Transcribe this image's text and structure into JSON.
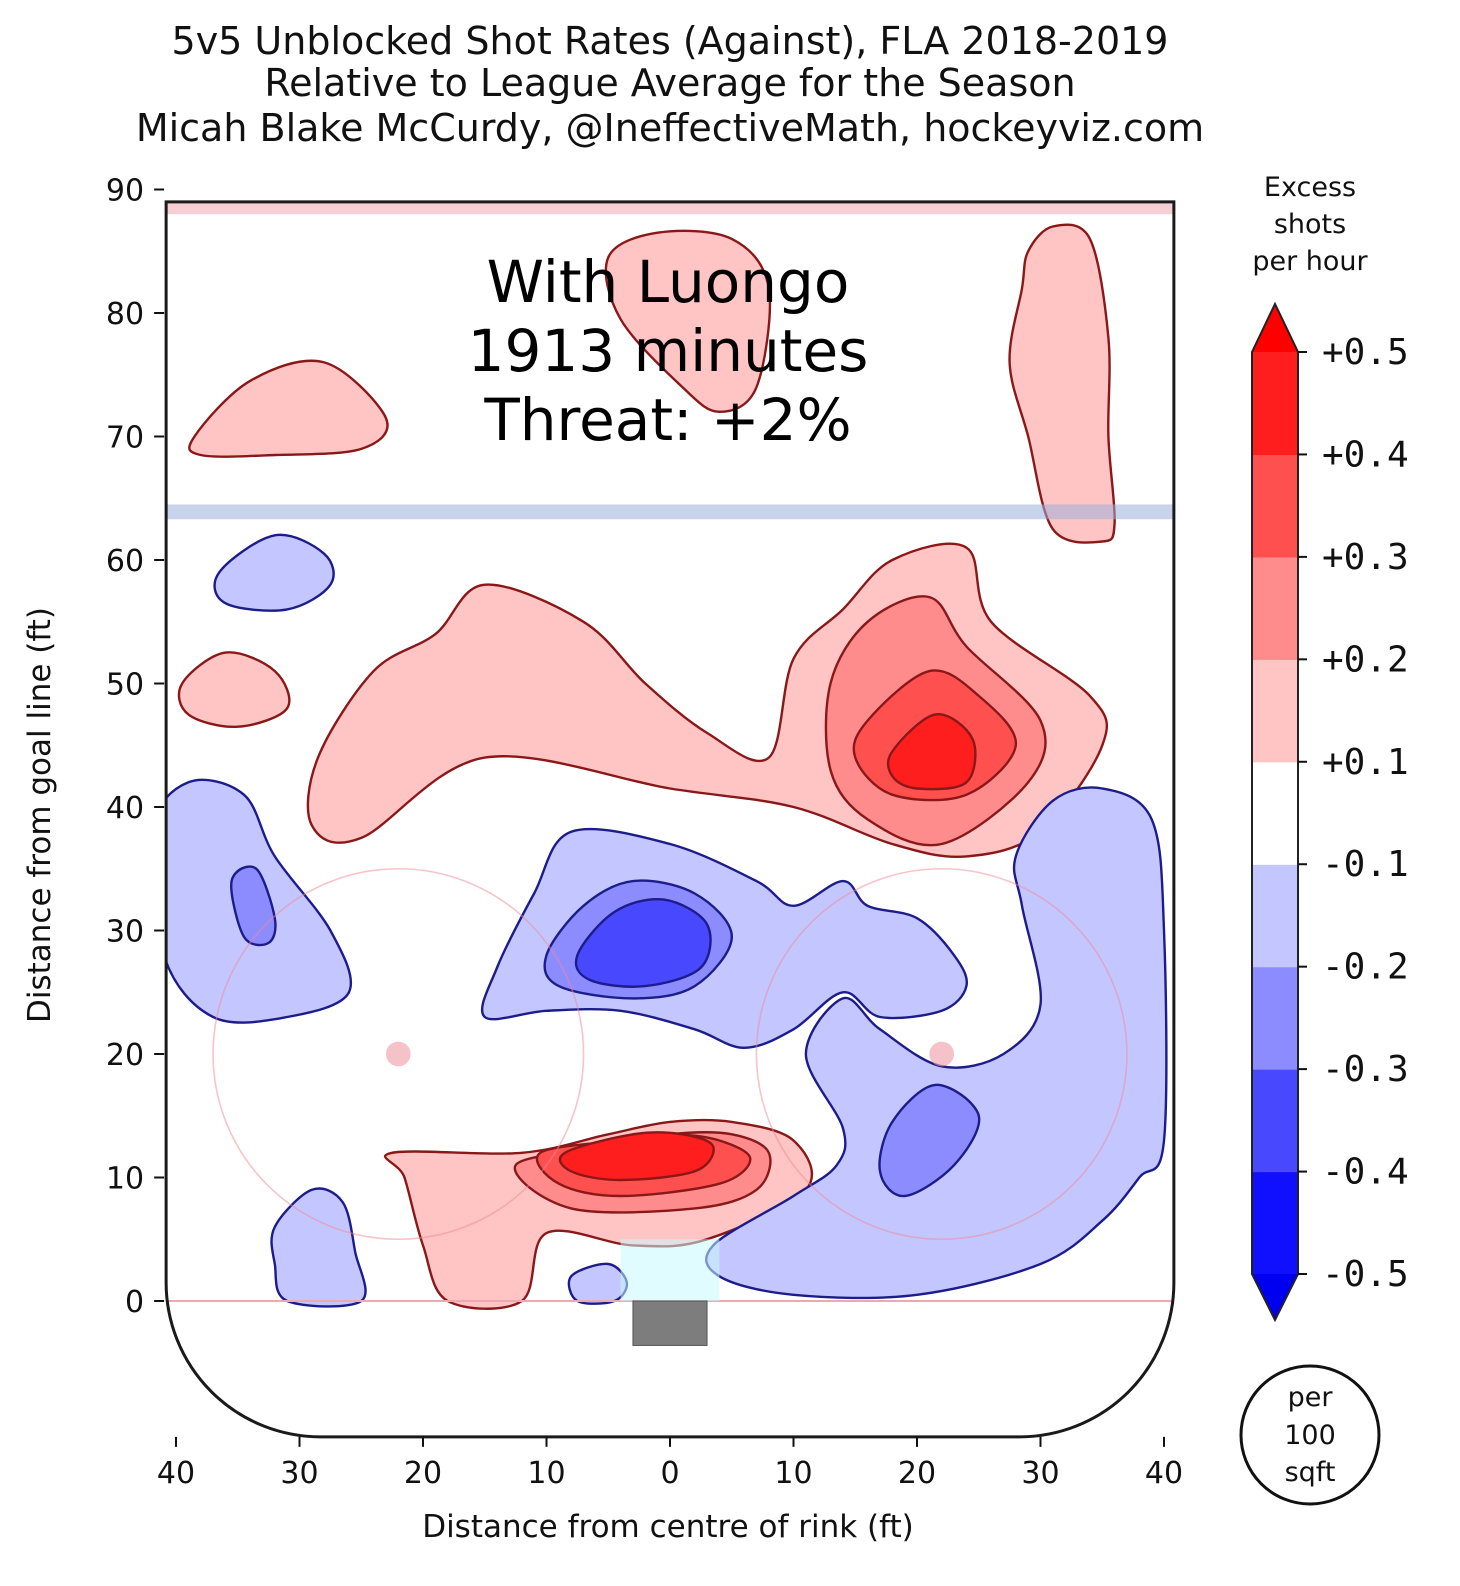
{
  "chart_data": {
    "type": "heatmap",
    "title": [
      "5v5 Unblocked Shot Rates (Against), FLA 2018-2019",
      "Relative to League Average for the Season",
      "Micah Blake McCurdy, @IneffectiveMath, hockeyviz.com"
    ],
    "xlabel": "Distance from centre of rink (ft)",
    "ylabel": "Distance from goal line (ft)",
    "xlim": [
      -42,
      42
    ],
    "ylim": [
      -11,
      90
    ],
    "x_ticks": [
      -40,
      -30,
      -20,
      -10,
      0,
      10,
      20,
      30,
      40
    ],
    "x_tick_labels": [
      "40",
      "30",
      "20",
      "10",
      "0",
      "10",
      "20",
      "30",
      "40"
    ],
    "y_ticks": [
      0,
      10,
      20,
      30,
      40,
      50,
      60,
      70,
      80,
      90
    ],
    "y_tick_labels": [
      "0",
      "10",
      "20",
      "30",
      "40",
      "50",
      "60",
      "70",
      "80",
      "90"
    ],
    "annotation": [
      "With Luongo",
      "1913 minutes",
      "Threat: +2%"
    ],
    "colorbar": {
      "title": [
        "Excess",
        "shots",
        "per hour"
      ],
      "levels": [
        -0.5,
        -0.4,
        -0.3,
        -0.2,
        -0.1,
        0.1,
        0.2,
        0.3,
        0.4,
        0.5
      ],
      "labels": [
        "-0.5",
        "-0.4",
        "-0.3",
        "-0.2",
        "-0.1",
        "+0.1",
        "+0.2",
        "+0.3",
        "+0.4",
        "+0.5"
      ],
      "colors": [
        "#1010ff",
        "#4848ff",
        "#8c8cff",
        "#c4c6ff",
        "#ffffff",
        "#ffc4c4",
        "#ff8c8c",
        "#ff5050",
        "#ff1e1e"
      ],
      "extend_low": "#0000f0",
      "extend_high": "#ff0000"
    },
    "unit_badge": [
      "per",
      "100",
      "sqft"
    ],
    "regions": [
      {
        "sign": "pos",
        "level": 1,
        "pts": [
          [
            -22.5,
            12
          ],
          [
            -12,
            12
          ],
          [
            -5,
            13.5
          ],
          [
            0,
            14.5
          ],
          [
            5,
            14.5
          ],
          [
            10,
            13
          ],
          [
            11,
            9
          ],
          [
            3,
            5
          ],
          [
            -3,
            4.5
          ],
          [
            -10,
            5.5
          ],
          [
            -12,
            0
          ],
          [
            -18,
            0
          ],
          [
            -20,
            4.5
          ],
          [
            -21.5,
            10
          ]
        ]
      },
      {
        "sign": "pos",
        "level": 2,
        "pts": [
          [
            -12.5,
            11
          ],
          [
            -5,
            12.5
          ],
          [
            0,
            13.5
          ],
          [
            5,
            13.5
          ],
          [
            8,
            12
          ],
          [
            7,
            9
          ],
          [
            2,
            7.5
          ],
          [
            -8,
            7.5
          ]
        ]
      },
      {
        "sign": "pos",
        "level": 3,
        "pts": [
          [
            -10.5,
            12
          ],
          [
            -4,
            13
          ],
          [
            0,
            13.5
          ],
          [
            4,
            13
          ],
          [
            6.5,
            11.5
          ],
          [
            4,
            9.5
          ],
          [
            -4,
            8.5
          ],
          [
            -9,
            9.5
          ]
        ]
      },
      {
        "sign": "pos",
        "level": 4,
        "pts": [
          [
            -8.5,
            12
          ],
          [
            -3,
            13.5
          ],
          [
            1,
            13.5
          ],
          [
            3.5,
            12.5
          ],
          [
            2,
            10.5
          ],
          [
            -4,
            9.8
          ],
          [
            -8,
            10.5
          ]
        ]
      },
      {
        "sign": "pos",
        "level": 1,
        "pts": [
          [
            -28.5,
            44
          ],
          [
            -24,
            51
          ],
          [
            -19,
            54
          ],
          [
            -15,
            58
          ],
          [
            -7,
            55
          ],
          [
            -2,
            50
          ],
          [
            3,
            46
          ],
          [
            8,
            44
          ],
          [
            10,
            52
          ],
          [
            14,
            56
          ],
          [
            18,
            60
          ],
          [
            24,
            61
          ],
          [
            26,
            55
          ],
          [
            34,
            49
          ],
          [
            35,
            45
          ],
          [
            30,
            38
          ],
          [
            24,
            36
          ],
          [
            18,
            37
          ],
          [
            10,
            40
          ],
          [
            0,
            41.5
          ],
          [
            -15,
            44
          ],
          [
            -25,
            37.5
          ],
          [
            -29,
            38.5
          ]
        ]
      },
      {
        "sign": "pos",
        "level": 2,
        "pts": [
          [
            13,
            50
          ],
          [
            16,
            55
          ],
          [
            21,
            57
          ],
          [
            24,
            53
          ],
          [
            30,
            47
          ],
          [
            29,
            42
          ],
          [
            22,
            37
          ],
          [
            16,
            39
          ],
          [
            13,
            43
          ]
        ]
      },
      {
        "sign": "pos",
        "level": 3,
        "pts": [
          [
            16,
            47
          ],
          [
            21,
            51
          ],
          [
            25,
            49
          ],
          [
            28,
            45
          ],
          [
            24,
            41
          ],
          [
            18,
            41
          ],
          [
            15,
            44
          ]
        ]
      },
      {
        "sign": "pos",
        "level": 4,
        "pts": [
          [
            18,
            44.5
          ],
          [
            21.5,
            47.5
          ],
          [
            24.5,
            45.5
          ],
          [
            24,
            42
          ],
          [
            20,
            41.5
          ],
          [
            18,
            42.5
          ]
        ]
      },
      {
        "sign": "pos",
        "level": 1,
        "pts": [
          [
            -38.5,
            70
          ],
          [
            -34,
            74.5
          ],
          [
            -28,
            76
          ],
          [
            -23,
            71.5
          ],
          [
            -25,
            69
          ],
          [
            -32,
            68.5
          ],
          [
            -38,
            68.5
          ]
        ]
      },
      {
        "sign": "pos",
        "level": 1,
        "pts": [
          [
            -5,
            84.5
          ],
          [
            -1,
            86.5
          ],
          [
            5,
            86
          ],
          [
            8,
            82
          ],
          [
            7,
            74
          ],
          [
            4,
            72
          ],
          [
            1,
            74
          ],
          [
            -4,
            79.5
          ]
        ]
      },
      {
        "sign": "pos",
        "level": 1,
        "pts": [
          [
            29,
            85
          ],
          [
            31,
            87
          ],
          [
            34,
            86
          ],
          [
            35.5,
            78
          ],
          [
            35.5,
            70
          ],
          [
            36,
            63
          ],
          [
            35,
            61.5
          ],
          [
            31,
            62.5
          ],
          [
            29,
            70
          ],
          [
            27.5,
            76
          ],
          [
            28.5,
            82
          ]
        ]
      },
      {
        "sign": "pos",
        "level": 1,
        "pts": [
          [
            -39.5,
            50
          ],
          [
            -36,
            52.5
          ],
          [
            -32,
            51
          ],
          [
            -31,
            48
          ],
          [
            -35,
            46.5
          ],
          [
            -39,
            47.5
          ]
        ]
      },
      {
        "sign": "neg",
        "level": 1,
        "pts": [
          [
            -42,
            38
          ],
          [
            -39,
            42
          ],
          [
            -34.5,
            41
          ],
          [
            -32,
            36
          ],
          [
            -27.5,
            30
          ],
          [
            -26,
            25
          ],
          [
            -31,
            23
          ],
          [
            -37,
            23
          ],
          [
            -41,
            28
          ]
        ]
      },
      {
        "sign": "neg",
        "level": 2,
        "pts": [
          [
            -35.5,
            34
          ],
          [
            -33.5,
            35
          ],
          [
            -32,
            31
          ],
          [
            -32.5,
            29
          ],
          [
            -34.5,
            29.5
          ]
        ]
      },
      {
        "sign": "neg",
        "level": 1,
        "pts": [
          [
            -36.5,
            59
          ],
          [
            -32,
            62
          ],
          [
            -28,
            60.5
          ],
          [
            -27.5,
            58
          ],
          [
            -31,
            56
          ],
          [
            -36,
            56.5
          ]
        ]
      },
      {
        "sign": "neg",
        "level": 1,
        "pts": [
          [
            -14,
            27
          ],
          [
            -11,
            33
          ],
          [
            -8,
            38
          ],
          [
            0,
            37
          ],
          [
            7,
            34
          ],
          [
            10,
            32
          ],
          [
            14,
            34
          ],
          [
            16,
            32
          ],
          [
            20,
            31
          ],
          [
            23,
            28
          ],
          [
            24,
            25.5
          ],
          [
            22,
            23.5
          ],
          [
            17,
            23
          ],
          [
            14,
            25
          ],
          [
            10,
            22
          ],
          [
            6,
            20.5
          ],
          [
            2,
            22
          ],
          [
            -4,
            23.5
          ],
          [
            -10,
            23.5
          ],
          [
            -15,
            23
          ]
        ]
      },
      {
        "sign": "neg",
        "level": 2,
        "pts": [
          [
            -10,
            28
          ],
          [
            -7,
            32
          ],
          [
            -3,
            34
          ],
          [
            2,
            33
          ],
          [
            5,
            29.5
          ],
          [
            2,
            25.5
          ],
          [
            -3,
            24.5
          ],
          [
            -9,
            25.5
          ]
        ]
      },
      {
        "sign": "neg",
        "level": 3,
        "pts": [
          [
            -7.5,
            28
          ],
          [
            -4.5,
            31.5
          ],
          [
            -0.5,
            32.5
          ],
          [
            3,
            30.5
          ],
          [
            2.5,
            27
          ],
          [
            -2,
            25.5
          ],
          [
            -6.5,
            26
          ]
        ]
      },
      {
        "sign": "neg",
        "level": 1,
        "pts": [
          [
            -32,
            6
          ],
          [
            -29,
            9
          ],
          [
            -26.5,
            8
          ],
          [
            -25.5,
            4
          ],
          [
            -25,
            0
          ],
          [
            -31,
            0
          ],
          [
            -32,
            3
          ]
        ]
      },
      {
        "sign": "neg",
        "level": 1,
        "pts": [
          [
            -8,
            2
          ],
          [
            -5,
            3
          ],
          [
            -3.5,
            1.5
          ],
          [
            -4.5,
            0
          ],
          [
            -7.5,
            0
          ]
        ]
      },
      {
        "sign": "neg",
        "level": 1,
        "pts": [
          [
            28,
            36
          ],
          [
            31,
            40.5
          ],
          [
            35,
            41.5
          ],
          [
            39,
            39
          ],
          [
            40,
            30
          ],
          [
            40,
            13
          ],
          [
            38,
            10
          ],
          [
            35,
            6.5
          ],
          [
            30,
            3
          ],
          [
            20,
            0.5
          ],
          [
            10,
            0.5
          ],
          [
            4,
            2
          ],
          [
            3.5,
            4.5
          ],
          [
            10,
            8.5
          ],
          [
            13.5,
            11
          ],
          [
            14,
            14
          ],
          [
            11,
            20
          ],
          [
            14,
            24.5
          ],
          [
            17,
            22
          ],
          [
            22,
            19
          ],
          [
            27,
            20
          ],
          [
            30,
            24
          ],
          [
            28.5,
            32
          ]
        ]
      },
      {
        "sign": "neg",
        "level": 2,
        "pts": [
          [
            17,
            10.5
          ],
          [
            18,
            14.5
          ],
          [
            21.5,
            17.5
          ],
          [
            25,
            15
          ],
          [
            23,
            11
          ],
          [
            19,
            8.5
          ]
        ]
      }
    ],
    "fills": {
      "pos": [
        "#ffc4c4",
        "#ff8c8c",
        "#ff5050",
        "#ff1e1e"
      ],
      "neg": [
        "#c4c6ff",
        "#8c8cff",
        "#4848ff"
      ]
    },
    "edges": {
      "pos": "#8a1818",
      "neg": "#1c1c8a"
    }
  }
}
